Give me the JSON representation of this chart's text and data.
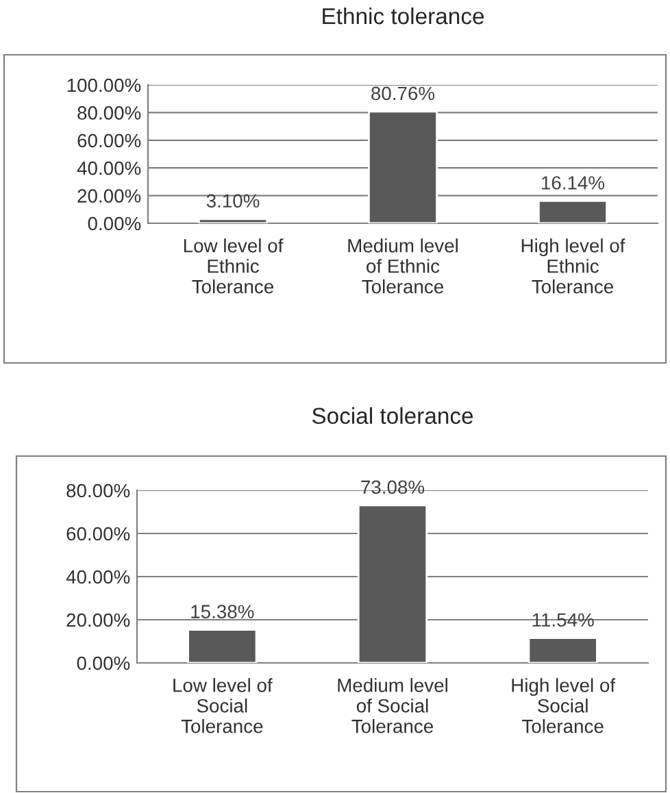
{
  "chart_data": [
    {
      "type": "bar",
      "title": "Ethnic tolerance",
      "categories": [
        "Low level of\nEthnic\nTolerance",
        "Medium level\nof Ethnic\nTolerance",
        "High level of\nEthnic\nTolerance"
      ],
      "values": [
        3.1,
        80.76,
        16.14
      ],
      "value_labels": [
        "3.10%",
        "80.76%",
        "16.14%"
      ],
      "color": "#595959",
      "ylim": [
        0,
        100
      ],
      "yticks": [
        {
          "value": 0,
          "label": "0.00%"
        },
        {
          "value": 20,
          "label": "20.00%"
        },
        {
          "value": 40,
          "label": "40.00%"
        },
        {
          "value": 60,
          "label": "60.00%"
        },
        {
          "value": 80,
          "label": "80.00%"
        },
        {
          "value": 100,
          "label": "100.00%"
        }
      ],
      "grid": "y",
      "legend": false
    },
    {
      "type": "bar",
      "title": "Social tolerance",
      "categories": [
        "Low level of\nSocial\nTolerance",
        "Medium level\nof Social\nTolerance",
        "High level of\nSocial\nTolerance"
      ],
      "values": [
        15.38,
        73.08,
        11.54
      ],
      "value_labels": [
        "15.38%",
        "73.08%",
        "11.54%"
      ],
      "color": "#595959",
      "ylim": [
        0,
        80
      ],
      "yticks": [
        {
          "value": 0,
          "label": "0.00%"
        },
        {
          "value": 20,
          "label": "20.00%"
        },
        {
          "value": 40,
          "label": "40.00%"
        },
        {
          "value": 60,
          "label": "60.00%"
        },
        {
          "value": 80,
          "label": "80.00%"
        }
      ],
      "grid": "y",
      "legend": false
    }
  ]
}
